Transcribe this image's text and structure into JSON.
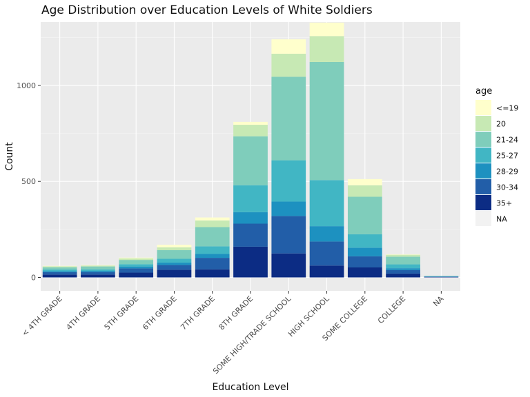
{
  "chart_data": {
    "type": "bar",
    "stacked": true,
    "title": "Age Distribution over Education Levels of White Soldiers",
    "xlabel": "Education Level",
    "ylabel": "Count",
    "ylim": [
      -70,
      1330
    ],
    "yticks": [
      0,
      500,
      1000
    ],
    "grid": true,
    "legend_position": "right",
    "legend_title": "age",
    "categories": [
      "< 4TH GRADE",
      "4TH GRADE",
      "5TH GRADE",
      "6TH GRADE",
      "7TH GRADE",
      "8TH GRADE",
      "SOME HIGH/TRADE SCHOOL",
      "HIGH SCHOOL",
      "SOME COLLEGE",
      "COLLEGE",
      "NA"
    ],
    "series": [
      {
        "name": "35+",
        "color": "#0C2C84",
        "values": [
          15,
          15,
          25,
          40,
          42,
          160,
          125,
          62,
          52,
          20,
          2
        ]
      },
      {
        "name": "30-34",
        "color": "#225EA8",
        "values": [
          12,
          13,
          22,
          25,
          60,
          120,
          195,
          125,
          58,
          18,
          2
        ]
      },
      {
        "name": "28-29",
        "color": "#1D91C0",
        "values": [
          6,
          6,
          10,
          12,
          20,
          60,
          75,
          80,
          45,
          10,
          1
        ]
      },
      {
        "name": "25-27",
        "color": "#41B6C4",
        "values": [
          8,
          8,
          12,
          20,
          40,
          140,
          215,
          240,
          70,
          20,
          1
        ]
      },
      {
        "name": "21-24",
        "color": "#7FCDBB",
        "values": [
          12,
          15,
          22,
          45,
          100,
          255,
          435,
          615,
          195,
          40,
          2
        ]
      },
      {
        "name": "20",
        "color": "#C7E9B4",
        "values": [
          5,
          5,
          8,
          15,
          35,
          60,
          120,
          135,
          60,
          10,
          0
        ]
      },
      {
        "name": "<=19",
        "color": "#FFFFCC",
        "values": [
          2,
          2,
          4,
          13,
          15,
          15,
          75,
          70,
          32,
          2,
          0
        ]
      },
      {
        "name": "NA",
        "color": "#F2F2F2",
        "values": [
          0,
          0,
          0,
          0,
          0,
          0,
          0,
          0,
          0,
          0,
          0
        ]
      }
    ]
  }
}
